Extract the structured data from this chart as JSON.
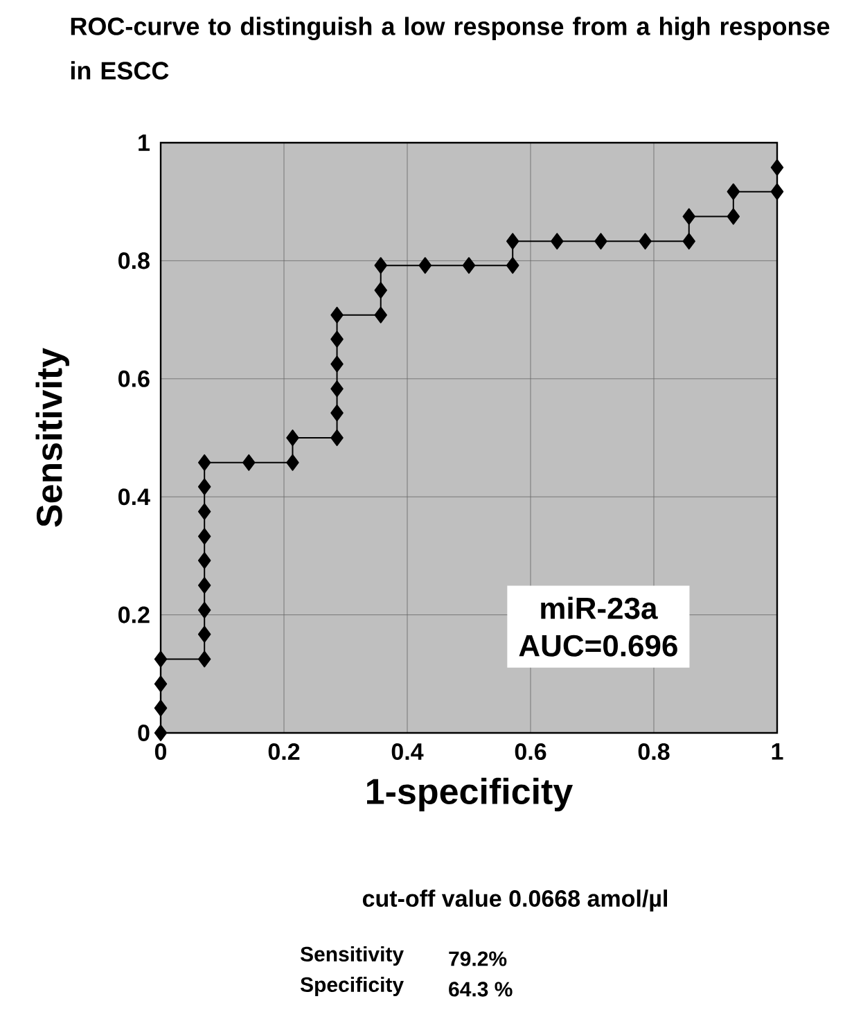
{
  "chart_data": {
    "type": "line",
    "title": "ROC-curve to distinguish a low response from a high response in ESCC",
    "xlabel": "1-specificity",
    "ylabel": "Sensitivity",
    "x": [
      0,
      0,
      0,
      0,
      0.071,
      0.071,
      0.071,
      0.071,
      0.071,
      0.071,
      0.071,
      0.071,
      0.071,
      0.143,
      0.214,
      0.214,
      0.286,
      0.286,
      0.286,
      0.286,
      0.286,
      0.286,
      0.357,
      0.357,
      0.357,
      0.429,
      0.5,
      0.571,
      0.571,
      0.643,
      0.714,
      0.786,
      0.857,
      0.857,
      0.929,
      0.929,
      1,
      1
    ],
    "series": [
      {
        "color": "#000000",
        "values": [
          0,
          0.042,
          0.083,
          0.125,
          0.125,
          0.167,
          0.208,
          0.25,
          0.292,
          0.333,
          0.375,
          0.417,
          0.458,
          0.458,
          0.458,
          0.5,
          0.5,
          0.542,
          0.583,
          0.625,
          0.667,
          0.708,
          0.708,
          0.75,
          0.792,
          0.792,
          0.792,
          0.792,
          0.833,
          0.833,
          0.833,
          0.833,
          0.833,
          0.875,
          0.875,
          0.917,
          0.917,
          0.958
        ]
      }
    ],
    "xlim": [
      0,
      1
    ],
    "ylim": [
      0,
      1
    ],
    "xticks": [
      0,
      0.2,
      0.4,
      0.6,
      0.8,
      1
    ],
    "yticks": [
      0,
      0.2,
      0.4,
      0.6,
      0.8,
      1
    ],
    "grid": true,
    "marker": "diamond",
    "line_style": "solid",
    "annotations": [
      "miR-23a",
      "AUC=0.696",
      "cut-off value 0.0668 amol/µl",
      "Sensitivity",
      "79.2%",
      "Specificity",
      "64.3 %"
    ]
  }
}
